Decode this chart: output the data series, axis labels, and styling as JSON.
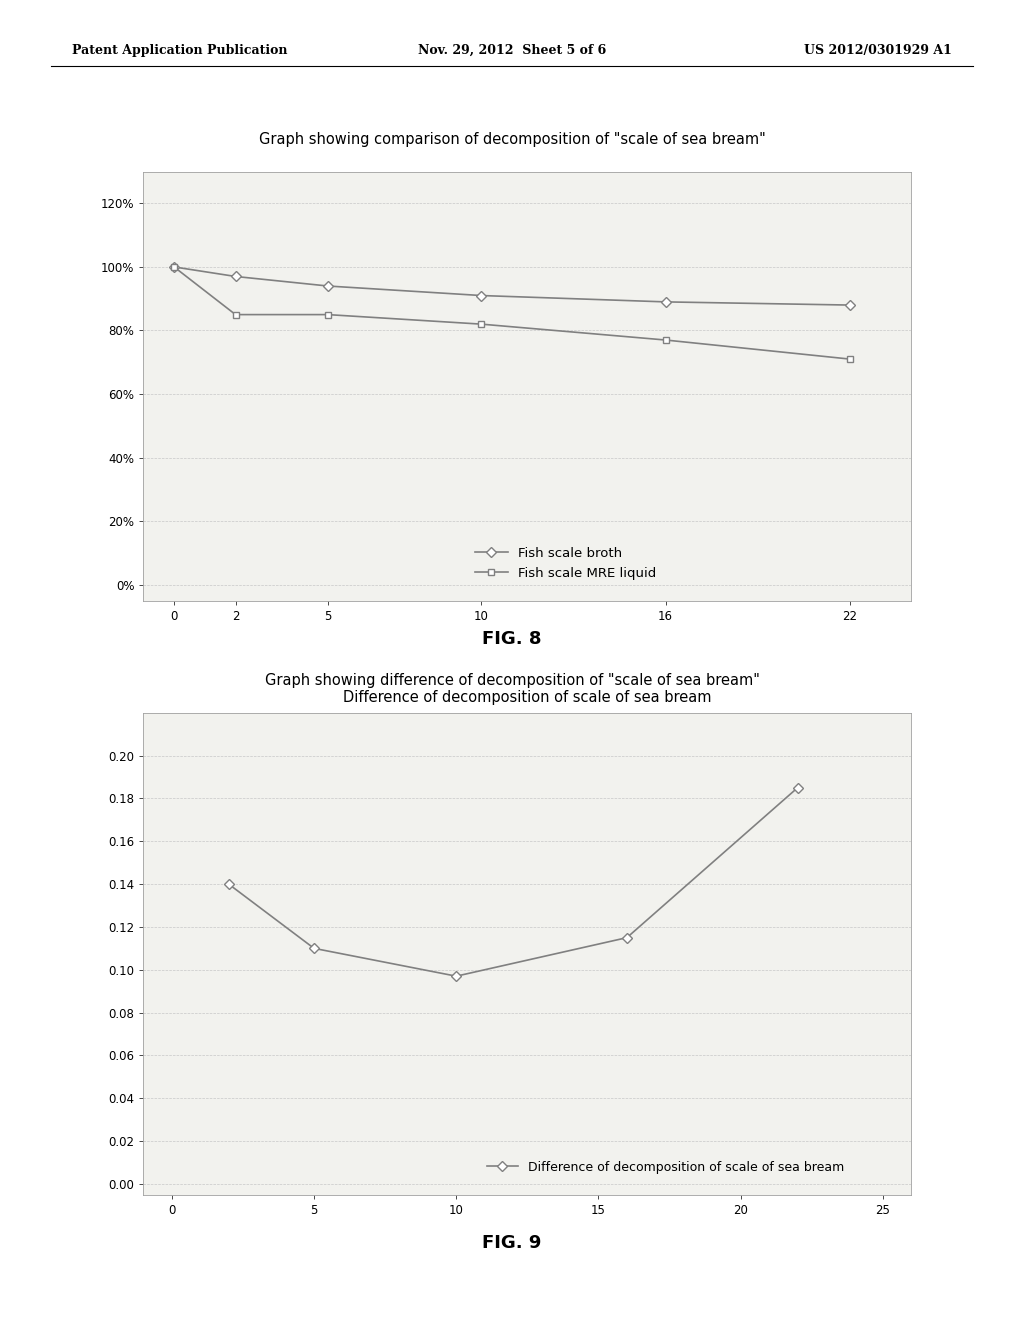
{
  "header_left": "Patent Application Publication",
  "header_mid": "Nov. 29, 2012  Sheet 5 of 6",
  "header_right": "US 2012/0301929 A1",
  "background_color": "#ffffff",
  "text_color": "#000000",
  "grid_color": "#c8c8c8",
  "border_color": "#a0a0a0",
  "line_color": "#808080",
  "fig8": {
    "outer_title": "Graph showing comparison of decomposition of \"scale of sea bream\"",
    "series1_label": "Fish scale broth",
    "series2_label": "Fish scale MRE liquid",
    "series1_x": [
      0,
      2,
      5,
      10,
      16,
      22
    ],
    "series1_y": [
      100,
      97,
      94,
      91,
      89,
      88
    ],
    "series2_x": [
      0,
      2,
      5,
      10,
      16,
      22
    ],
    "series2_y": [
      100,
      85,
      85,
      82,
      77,
      71
    ],
    "xticks": [
      0,
      2,
      5,
      10,
      16,
      22
    ],
    "yticks": [
      0,
      20,
      40,
      60,
      80,
      100,
      120
    ],
    "yticklabels": [
      "0%",
      "20%",
      "40%",
      "60%",
      "80%",
      "100%",
      "120%"
    ],
    "ylim": [
      -5,
      130
    ],
    "xlim": [
      -1,
      24
    ],
    "marker1": "D",
    "marker2": "s",
    "markersize": 5,
    "fig_label": "FIG. 8"
  },
  "fig9": {
    "outer_title": "Graph showing difference of decomposition of \"scale of sea bream\"",
    "inner_title": "Difference of decomposition of scale of sea bream",
    "series_label": "Difference of decomposition of scale of sea bream",
    "series_x": [
      2,
      5,
      10,
      16,
      22
    ],
    "series_y": [
      0.14,
      0.11,
      0.097,
      0.115,
      0.185
    ],
    "xticks": [
      0,
      5,
      10,
      15,
      20,
      25
    ],
    "yticks": [
      0.0,
      0.02,
      0.04,
      0.06,
      0.08,
      0.1,
      0.12,
      0.14,
      0.16,
      0.18,
      0.2
    ],
    "yticklabels": [
      "0.00",
      "0.02",
      "0.04",
      "0.06",
      "0.08",
      "0.10",
      "0.12",
      "0.14",
      "0.16",
      "0.18",
      "0.20"
    ],
    "ylim": [
      -0.005,
      0.22
    ],
    "xlim": [
      -1,
      26
    ],
    "marker": "D",
    "markersize": 5,
    "fig_label": "FIG. 9"
  }
}
